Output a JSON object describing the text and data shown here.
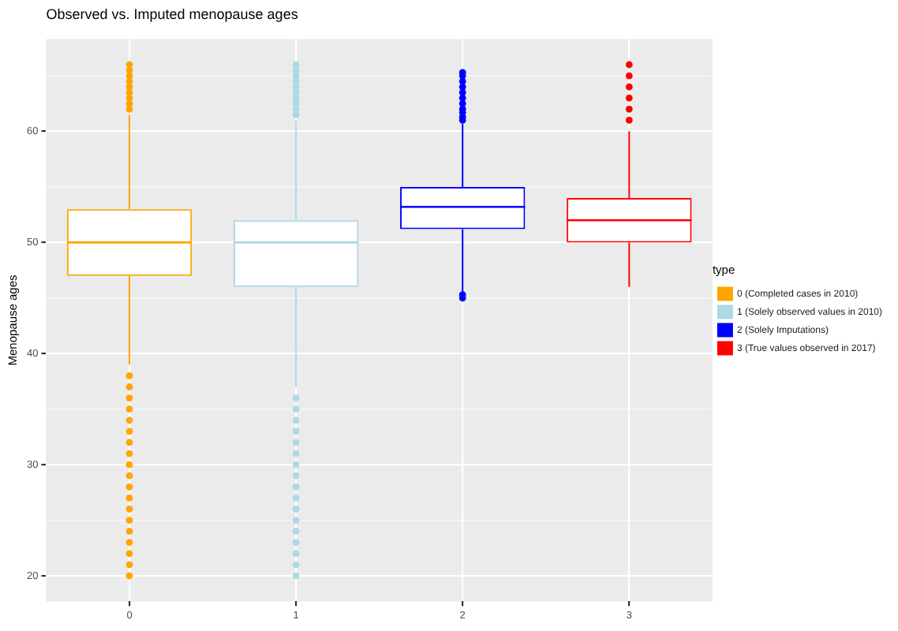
{
  "chart_data": {
    "type": "box",
    "title": "Observed vs. Imputed menopause ages",
    "ylabel": "Menopause ages",
    "legend_title": "type",
    "legend": "right",
    "grid": true,
    "categories": [
      "0",
      "1",
      "2",
      "3"
    ],
    "series": [
      {
        "name": "0 (Completed cases in 2010)",
        "color": "#ffa500",
        "boxes": [
          {
            "low": 39,
            "q1": 47,
            "median": 50,
            "q3": 53,
            "high": 61.5,
            "outliers": [
              62,
              62.5,
              63,
              63.5,
              64,
              64.5,
              65,
              65.5,
              66,
              38,
              37,
              36,
              35,
              34,
              33,
              32,
              31,
              30,
              29,
              28,
              27,
              26,
              25,
              24,
              23,
              22,
              21,
              20
            ]
          },
          null,
          null,
          null
        ]
      },
      {
        "name": "1 (Solely observed values in 2010)",
        "color": "#add8e6",
        "boxes": [
          null,
          {
            "low": 37,
            "q1": 46,
            "median": 50,
            "q3": 52,
            "high": 61,
            "outliers": [
              61.5,
              62,
              62.5,
              63,
              63.5,
              64,
              64.5,
              65,
              65.5,
              66,
              36,
              35,
              34,
              33,
              32,
              31,
              30,
              29,
              28,
              27,
              26,
              25,
              24,
              23,
              22,
              21,
              20
            ]
          },
          null,
          null
        ]
      },
      {
        "name": "2 (Solely Imputations)",
        "color": "#0000ff",
        "boxes": [
          null,
          null,
          {
            "low": 45.5,
            "q1": 51.2,
            "median": 53.2,
            "q3": 55,
            "high": 60.7,
            "outliers": [
              61,
              61.3,
              61.7,
              62,
              62.5,
              63,
              63.5,
              64,
              64.5,
              65,
              65.3,
              45,
              45.3
            ]
          },
          null
        ]
      },
      {
        "name": "3 (True values observed in 2017)",
        "color": "#ff0000",
        "boxes": [
          null,
          null,
          null,
          {
            "low": 46,
            "q1": 50,
            "median": 52,
            "q3": 54,
            "high": 60,
            "outliers": [
              61,
              62,
              63,
              64,
              65,
              66
            ]
          }
        ]
      }
    ],
    "ylim": [
      17.7,
      68.3
    ],
    "yticks": [
      20,
      {
        "value": 25,
        "label": null
      },
      30,
      {
        "value": 35,
        "label": null
      },
      40,
      {
        "value": 45,
        "label": null
      },
      50,
      {
        "value": 55,
        "label": null
      },
      60,
      {
        "value": 65,
        "label": null
      }
    ]
  }
}
